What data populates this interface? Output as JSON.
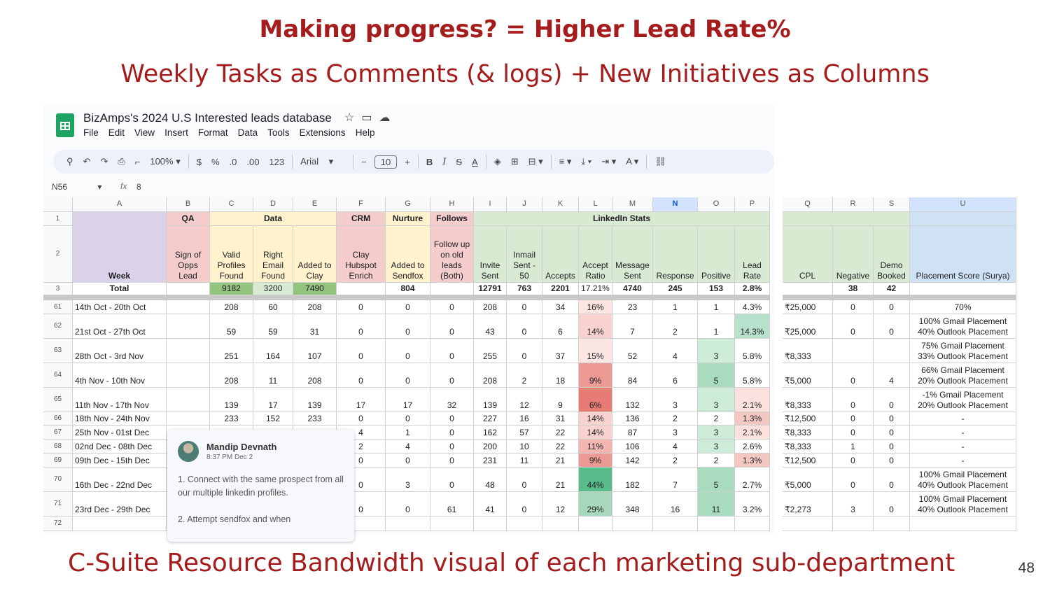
{
  "slide": {
    "title": "Making progress? = Higher Lead Rate%",
    "subtitle": "Weekly Tasks as Comments (& logs) + New Initiatives as Columns",
    "footer": "C-Suite Resource Bandwidth visual of each marketing sub-department",
    "page_number": "48"
  },
  "sheet": {
    "title": "BizAmps's  2024 U.S Interested leads database",
    "title_icons": [
      "star-icon",
      "move-folder-icon",
      "cloud-status-icon"
    ],
    "menu": [
      "File",
      "Edit",
      "View",
      "Insert",
      "Format",
      "Data",
      "Tools",
      "Extensions",
      "Help"
    ],
    "toolbar": {
      "zoom": "100%",
      "currency": "$",
      "percent": "%",
      "decrease_decimal": ".0",
      "increase_decimal": ".00",
      "number_format": "123",
      "font": "Arial",
      "font_size": "10",
      "bold": "B",
      "italic": "I",
      "strikethrough": "S",
      "text_color": "A"
    },
    "name_box": "N56",
    "formula_label": "fx",
    "formula_value": "8"
  },
  "grid": {
    "col_letters": [
      "A",
      "B",
      "C",
      "D",
      "E",
      "F",
      "G",
      "H",
      "I",
      "J",
      "K",
      "L",
      "M",
      "N",
      "O",
      "P"
    ],
    "selected_col": "N",
    "row1_groups": [
      "QA",
      "Data",
      "CRM",
      "Nurture",
      "Follows",
      "LinkedIn Stats"
    ],
    "row2_headers": [
      "Week",
      "Sign of\nOpps\nLead",
      "Valid\nProfiles\nFound",
      "Right\nEmail\nFound",
      "Added to\nClay",
      "Clay\nHubspot\nEnrich",
      "Added to\nSendfox",
      "Follow up\non old\nleads\n(Both)",
      "Invite\nSent",
      "Inmail\nSent -\n50",
      "Accepts",
      "Accept\nRatio",
      "Message\nSent",
      "Response",
      "Positive",
      "Lead\nRate"
    ],
    "totals": [
      "Total",
      "",
      "9182",
      "3200",
      "7490",
      "",
      "804",
      "",
      "12791",
      "763",
      "2201",
      "17.21%",
      "4740",
      "245",
      "153",
      "2.8%"
    ],
    "rows": [
      {
        "num": "61",
        "cells": [
          "14th Oct - 20th Oct",
          "",
          "208",
          "60",
          "208",
          "0",
          "0",
          "0",
          "208",
          "0",
          "34",
          "16%",
          "23",
          "1",
          "1",
          "4.3%"
        ]
      },
      {
        "num": "62",
        "cells": [
          "21st Oct - 27th Oct",
          "",
          "59",
          "59",
          "31",
          "0",
          "0",
          "0",
          "43",
          "0",
          "6",
          "14%",
          "7",
          "2",
          "1",
          "14.3%"
        ]
      },
      {
        "num": "63",
        "cells": [
          "28th Oct - 3rd Nov",
          "",
          "251",
          "164",
          "107",
          "0",
          "0",
          "0",
          "255",
          "0",
          "37",
          "15%",
          "52",
          "4",
          "3",
          "5.8%"
        ]
      },
      {
        "num": "64",
        "cells": [
          "4th Nov - 10th Nov",
          "",
          "208",
          "11",
          "208",
          "0",
          "0",
          "0",
          "208",
          "2",
          "18",
          "9%",
          "84",
          "6",
          "5",
          "5.8%"
        ]
      },
      {
        "num": "65",
        "cells": [
          "11th Nov - 17th Nov",
          "",
          "139",
          "17",
          "139",
          "17",
          "17",
          "32",
          "139",
          "12",
          "9",
          "6%",
          "132",
          "3",
          "3",
          "2.1%"
        ]
      },
      {
        "num": "66",
        "cells": [
          "18th Nov - 24th Nov",
          "",
          "233",
          "152",
          "233",
          "0",
          "0",
          "0",
          "227",
          "16",
          "31",
          "14%",
          "136",
          "2",
          "2",
          "1.3%"
        ]
      },
      {
        "num": "67",
        "cells": [
          "25th Nov - 01st Dec",
          "",
          "",
          "",
          "",
          "4",
          "1",
          "0",
          "162",
          "57",
          "22",
          "14%",
          "87",
          "3",
          "3",
          "2.1%"
        ]
      },
      {
        "num": "68",
        "cells": [
          "02nd Dec - 08th Dec",
          "",
          "",
          "",
          "",
          "2",
          "4",
          "0",
          "200",
          "10",
          "22",
          "11%",
          "106",
          "4",
          "3",
          "2.6%"
        ]
      },
      {
        "num": "69",
        "cells": [
          "09th Dec - 15th Dec",
          "",
          "",
          "",
          "",
          "0",
          "0",
          "0",
          "231",
          "11",
          "21",
          "9%",
          "142",
          "2",
          "2",
          "1.3%"
        ]
      },
      {
        "num": "70",
        "cells": [
          "16th Dec - 22nd Dec",
          "",
          "",
          "",
          "",
          "0",
          "3",
          "0",
          "48",
          "0",
          "21",
          "44%",
          "182",
          "7",
          "5",
          "2.7%"
        ]
      },
      {
        "num": "71",
        "cells": [
          "23rd Dec - 29th Dec",
          "",
          "",
          "",
          "",
          "0",
          "0",
          "61",
          "41",
          "0",
          "12",
          "29%",
          "348",
          "16",
          "11",
          "3.2%"
        ]
      },
      {
        "num": "72",
        "cells": [
          "",
          "",
          "",
          "",
          "",
          "",
          "",
          "",
          "",
          "",
          "",
          "",
          "",
          "",
          "",
          ""
        ]
      }
    ],
    "colors": {
      "week_purple": "#d9d2e9",
      "qa_pink": "#f4cccc",
      "data_yellow": "#fff2cc",
      "crm_pink": "#f4cccc",
      "linkedin_green": "#d9ead3",
      "placement_blue": "#cfe2f3",
      "total_green": "#93c47d",
      "lead_high": "#b7e1cd",
      "lead_low": "#f4c7c3",
      "ratio_red": "#e67c73",
      "ratio_green": "#57bb8a"
    }
  },
  "right_grid": {
    "col_letters": [
      "Q",
      "R",
      "S",
      "U"
    ],
    "headers": [
      "CPL",
      "Negative",
      "Demo\nBooked",
      "Placement Score (Surya)"
    ],
    "totals": [
      "",
      "38",
      "42",
      ""
    ],
    "rows": [
      [
        "₹25,000",
        "0",
        "0",
        "70%"
      ],
      [
        "₹25,000",
        "0",
        "0",
        "100% Gmail Placement\n40% Outlook Placement"
      ],
      [
        "₹8,333",
        "",
        "",
        "75% Gmail Placement\n33% Outlook Placement"
      ],
      [
        "₹5,000",
        "0",
        "4",
        "66% Gmail Placement\n20% Outlook Placement"
      ],
      [
        "₹8,333",
        "0",
        "0",
        "-1% Gmail Placement\n20% Outlook Placement"
      ],
      [
        "₹12,500",
        "0",
        "0",
        "-"
      ],
      [
        "₹8,333",
        "0",
        "0",
        "-"
      ],
      [
        "₹8,333",
        "1",
        "0",
        "-"
      ],
      [
        "₹12,500",
        "0",
        "0",
        "-"
      ],
      [
        "₹5,000",
        "0",
        "0",
        "100% Gmail Placement\n40% Outlook Placement"
      ],
      [
        "₹2,273",
        "3",
        "0",
        "100% Gmail Placement\n40% Outlook Placement"
      ],
      [
        "",
        "",
        "",
        ""
      ]
    ]
  },
  "comment": {
    "author": "Mandip Devnath",
    "time": "8:37 PM Dec 2",
    "paragraphs": [
      "1. Connect with the same prospect from all our multiple linkedin profiles.",
      "2. Attempt sendfox and when"
    ]
  }
}
